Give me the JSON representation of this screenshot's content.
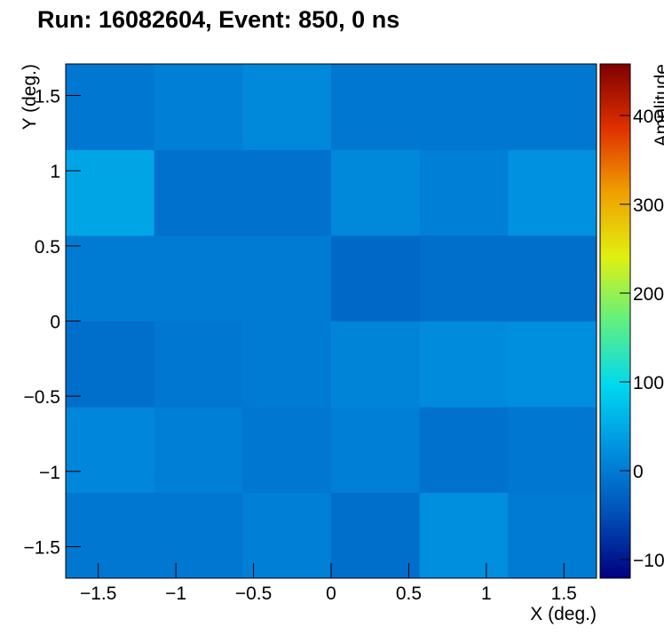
{
  "chart_data": {
    "type": "heatmap",
    "title": "Run: 16082604, Event: 850, 0 ns",
    "x_label": "X (deg.)",
    "y_label": "Y (deg.)",
    "z_label": "Amplitude",
    "xbins": [
      -1.71,
      -1.14,
      -0.57,
      0,
      0.57,
      1.14,
      1.71
    ],
    "ybins": [
      -1.71,
      -1.14,
      -0.57,
      0,
      0.57,
      1.14,
      1.71
    ],
    "values": [
      [
        -5,
        -5,
        5,
        -15,
        22,
        0
      ],
      [
        12,
        5,
        -5,
        5,
        -10,
        -5
      ],
      [
        -15,
        -5,
        0,
        10,
        18,
        22
      ],
      [
        0,
        0,
        0,
        -20,
        -15,
        -15
      ],
      [
        45,
        -10,
        -10,
        15,
        5,
        25
      ],
      [
        -5,
        5,
        15,
        -5,
        -5,
        -5
      ]
    ],
    "xlim": [
      -1.71,
      1.71
    ],
    "ylim": [
      -1.71,
      1.71
    ],
    "zlim": [
      -121,
      458
    ],
    "xticks": [
      {
        "value": -1.5,
        "label": "−1.5"
      },
      {
        "value": -1,
        "label": "−1"
      },
      {
        "value": -0.5,
        "label": "−0.5"
      },
      0,
      0.5,
      1,
      1.5
    ],
    "yticks": [
      {
        "value": -1.5,
        "label": "−1.5"
      },
      {
        "value": -1,
        "label": "−1"
      },
      {
        "value": -0.5,
        "label": "−0.5"
      },
      0,
      0.5,
      1,
      1.5
    ],
    "zticks": [
      {
        "value": -100,
        "label": "−100"
      },
      0,
      100,
      200,
      300,
      400
    ],
    "palette": [
      "#00007f",
      "#0050b8",
      "#0090e0",
      "#00d8f0",
      "#60f080",
      "#e0f010",
      "#f0a000",
      "#e03000",
      "#7f0000"
    ]
  }
}
